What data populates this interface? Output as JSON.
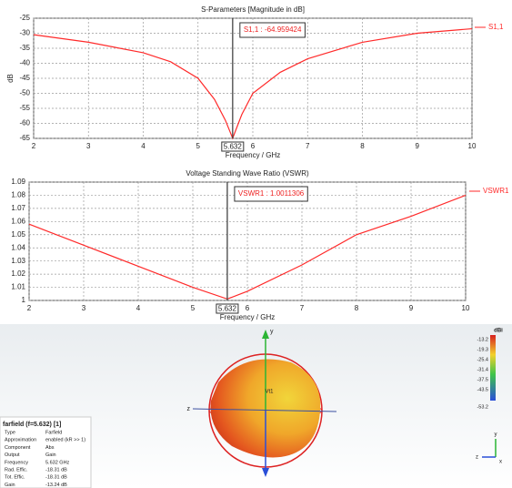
{
  "chart_data": [
    {
      "type": "line",
      "title": "S-Parameters [Magnitude in dB]",
      "x_label": "Frequency / GHz",
      "y_label": "dB",
      "x": [
        2,
        3,
        4,
        4.5,
        5,
        5.3,
        5.5,
        5.632,
        5.8,
        6,
        6.5,
        7,
        8,
        9,
        10
      ],
      "series": [
        {
          "name": "S1,1",
          "color": "#ff2a2a",
          "values": [
            -30.5,
            -33,
            -36.5,
            -39.5,
            -45,
            -52,
            -59,
            -64.96,
            -57,
            -50,
            -43,
            -38.5,
            -33,
            -30,
            -28.5
          ]
        }
      ],
      "xlim": [
        2,
        10
      ],
      "xticks": [
        2,
        3,
        4,
        5,
        6,
        7,
        8,
        9,
        10
      ],
      "ylim": [
        -65,
        -25
      ],
      "yticks": [
        -65,
        -60,
        -55,
        -50,
        -45,
        -40,
        -35,
        -30,
        -25
      ],
      "grid": true,
      "marker": {
        "x": 5.632,
        "label": "S1,1 : -64.959424"
      }
    },
    {
      "type": "line",
      "title": "Voltage Standing Wave Ratio (VSWR)",
      "x_label": "Frequency / GHz",
      "x": [
        2,
        3,
        4,
        5,
        5.632,
        6,
        7,
        8,
        9,
        10
      ],
      "series": [
        {
          "name": "VSWR1",
          "color": "#ff2a2a",
          "values": [
            1.058,
            1.042,
            1.026,
            1.01,
            1.0011,
            1.007,
            1.027,
            1.05,
            1.064,
            1.08
          ]
        }
      ],
      "xlim": [
        2,
        10
      ],
      "xticks": [
        2,
        3,
        4,
        5,
        6,
        7,
        8,
        9,
        10
      ],
      "ylim": [
        1,
        1.09
      ],
      "yticks": [
        1,
        1.01,
        1.02,
        1.03,
        1.04,
        1.05,
        1.06,
        1.07,
        1.08,
        1.09
      ],
      "grid": true,
      "marker": {
        "x": 5.632,
        "label": "VSWR1 : 1.0011306"
      }
    }
  ],
  "farfield": {
    "title": "farfield (f=5.632) [1]",
    "properties": [
      [
        "Type",
        "Farfield"
      ],
      [
        "Approximation",
        "enabled (kR >> 1)"
      ],
      [
        "Component",
        "Abs"
      ],
      [
        "Output",
        "Gain"
      ],
      [
        "Frequency",
        "5.632 GHz"
      ],
      [
        "Rad. Effic.",
        "-18.31 dB"
      ],
      [
        "Tot. Effic.",
        "-18.31 dB"
      ],
      [
        "Gain",
        "-13.24 dB"
      ]
    ],
    "scale_unit": "dBi",
    "scale_labels": [
      "-13.2",
      "-19.3",
      "-25.4",
      "-31.4",
      "-37.5",
      "-43.5",
      "-53.2"
    ],
    "axis_labels": {
      "z": "z",
      "y": "y",
      "center": "Vt1"
    },
    "triad_labels": {
      "y": "y",
      "z": "z",
      "x": "x"
    }
  }
}
